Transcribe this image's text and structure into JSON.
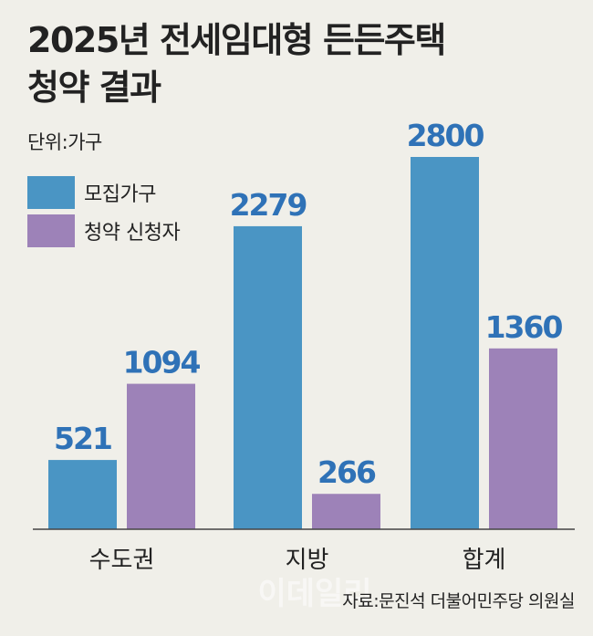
{
  "title_line1": "2025년 전세임대형 든든주택",
  "title_line2": "청약 결과",
  "unit": "단위:가구",
  "source": "자료:문진석 더불어민주당 의원실",
  "watermark": "이데일리",
  "colors": {
    "recruit": "#4a95c4",
    "applicants": "#9d82b8",
    "value_label": "#2f72b7",
    "baseline": "#444444",
    "background": "#f0efe9"
  },
  "chart_data": {
    "type": "bar",
    "categories": [
      "수도권",
      "지방",
      "합계"
    ],
    "series": [
      {
        "name": "모집가구",
        "values": [
          521,
          2279,
          2800
        ],
        "color": "#4a95c4"
      },
      {
        "name": "청약 신청자",
        "values": [
          1094,
          266,
          1360
        ],
        "color": "#9d82b8"
      }
    ],
    "ylim": [
      0,
      2800
    ],
    "grid": false,
    "legend": "top-left",
    "data_labels": true
  }
}
